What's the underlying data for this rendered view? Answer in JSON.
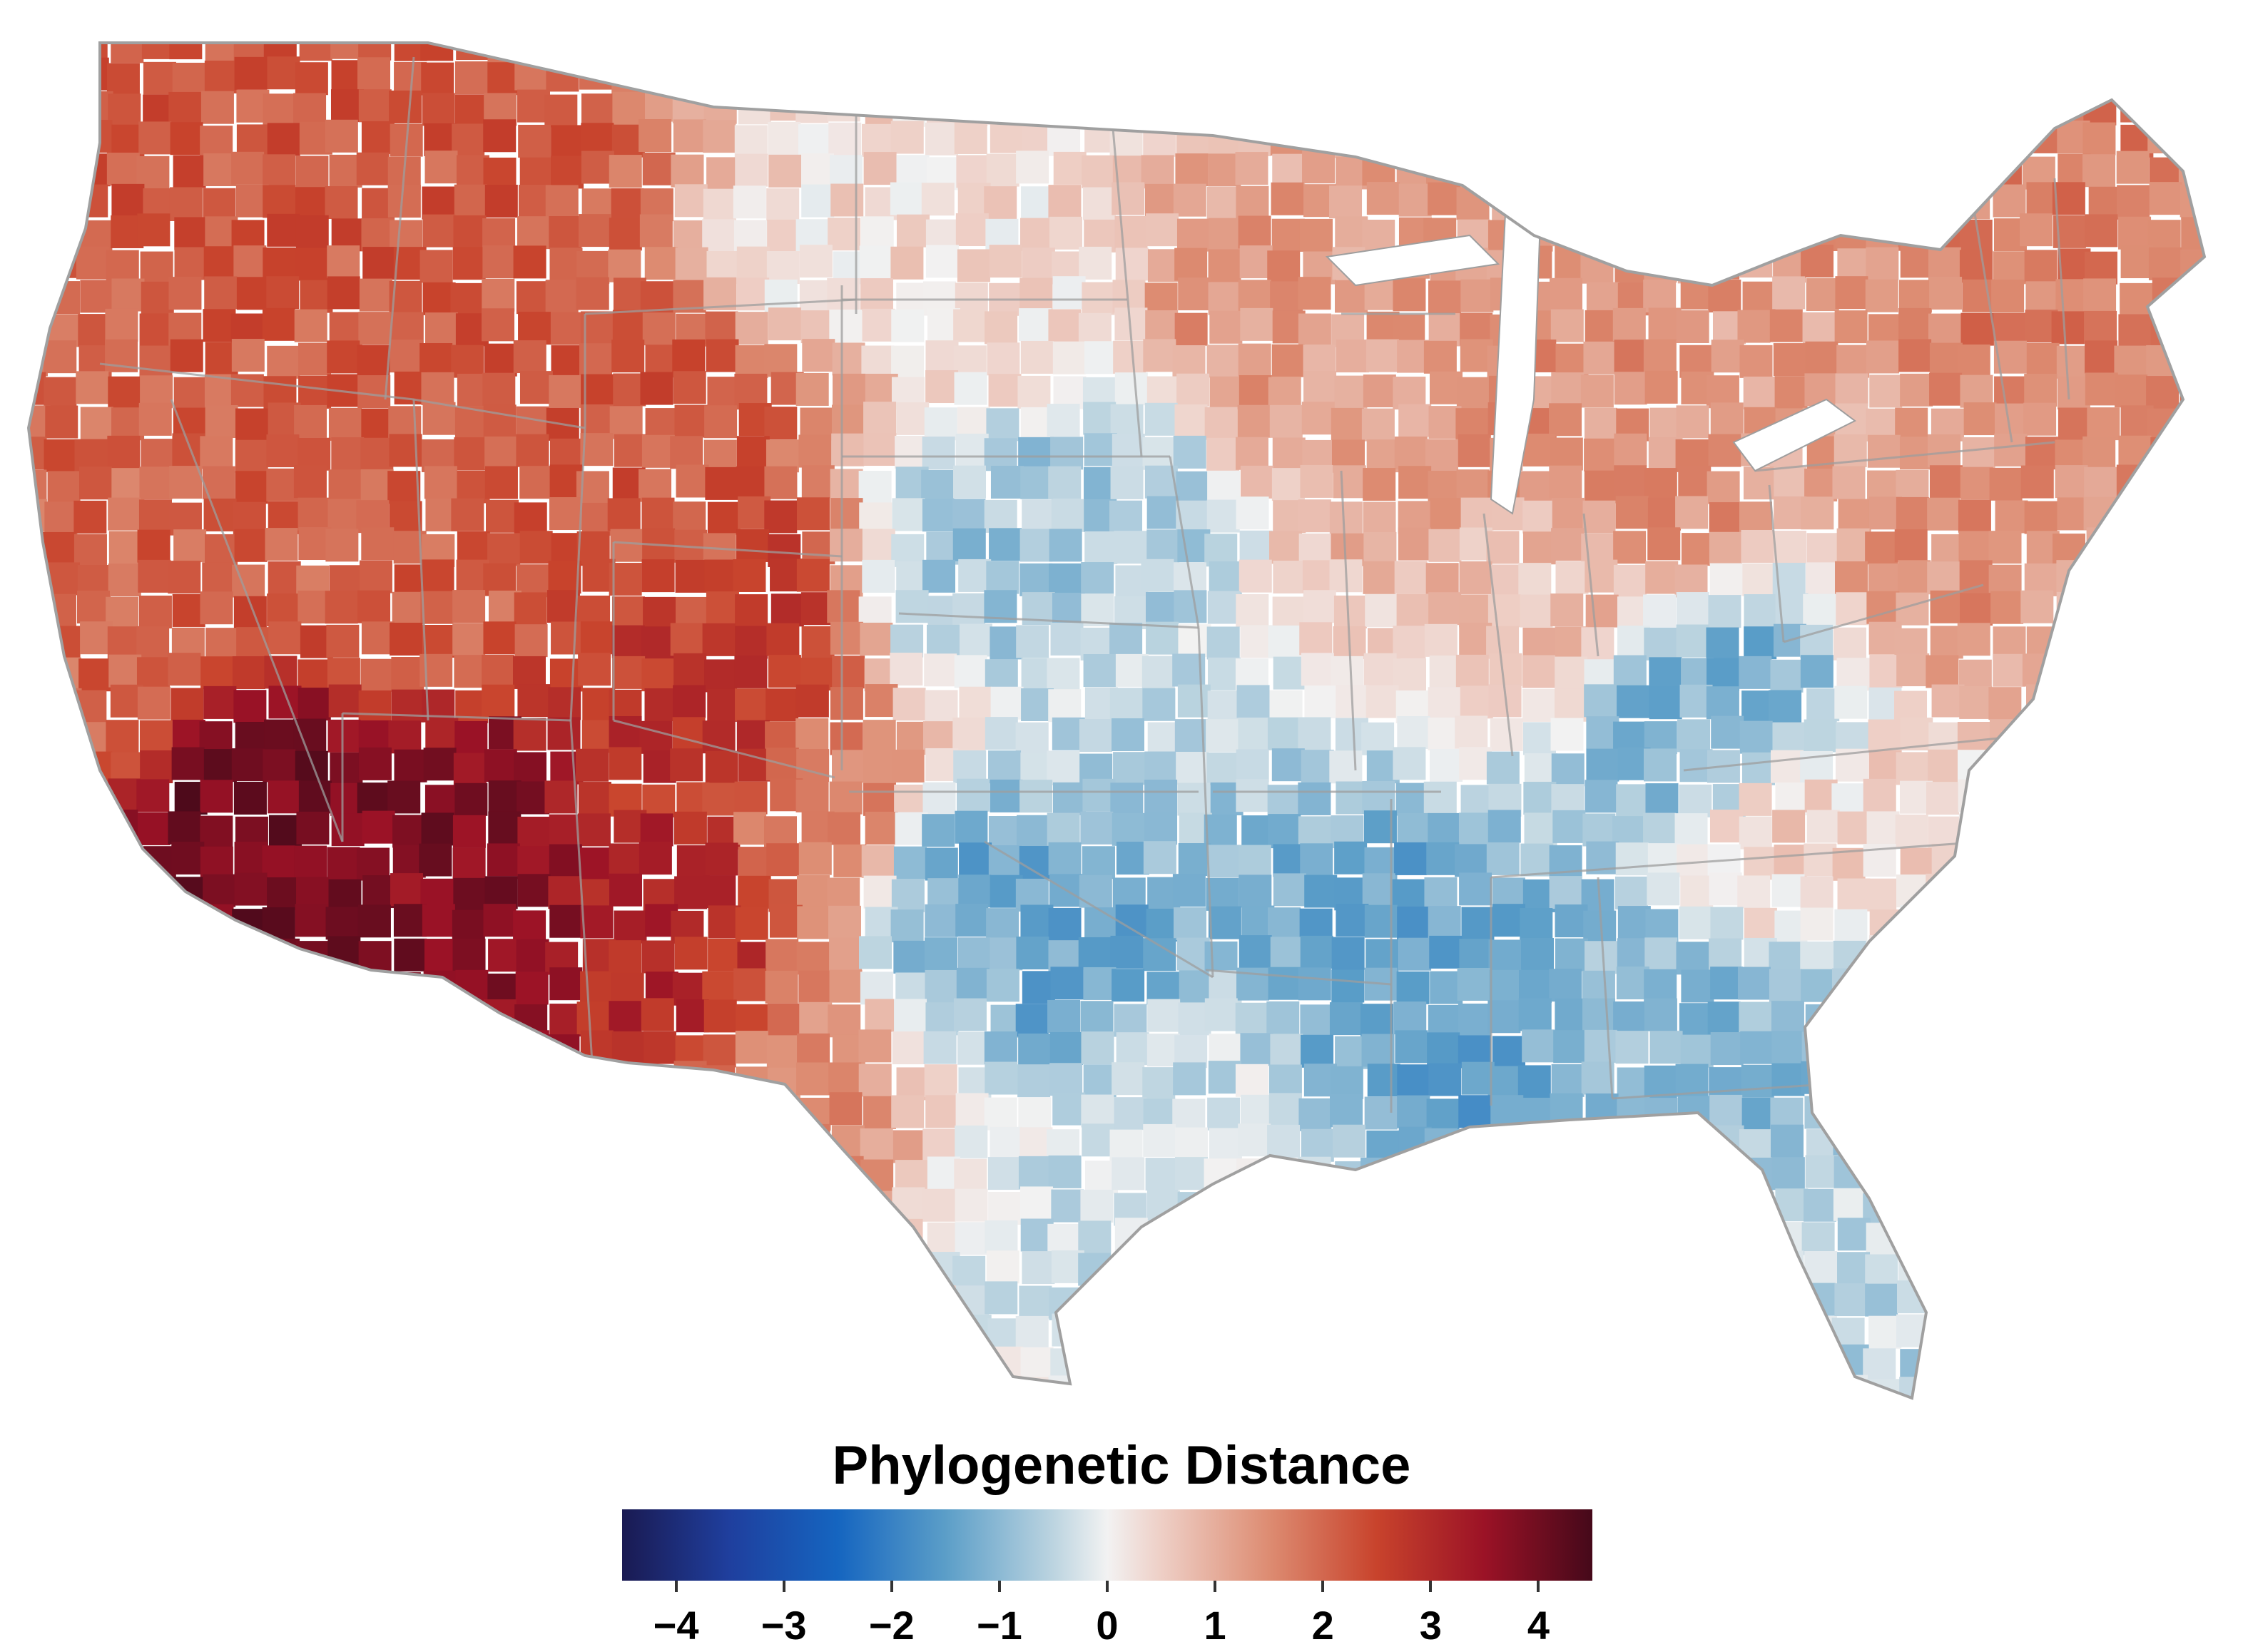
{
  "legend": {
    "title": "Phylogenetic Distance",
    "scale_min": -4.5,
    "scale_max": 4.5,
    "ticks": [
      {
        "value": -4,
        "label": "−4"
      },
      {
        "value": -3,
        "label": "−3"
      },
      {
        "value": -2,
        "label": "−2"
      },
      {
        "value": -1,
        "label": "−1"
      },
      {
        "value": 0,
        "label": "0"
      },
      {
        "value": 1,
        "label": "1"
      },
      {
        "value": 2,
        "label": "2"
      },
      {
        "value": 3,
        "label": "3"
      },
      {
        "value": 4,
        "label": "4"
      }
    ],
    "color_stops": [
      {
        "value": -4.5,
        "color": "#1a1a52"
      },
      {
        "value": -3.5,
        "color": "#1f3f9e"
      },
      {
        "value": -2.5,
        "color": "#1565c0"
      },
      {
        "value": -1.5,
        "color": "#5b9ec8"
      },
      {
        "value": -0.5,
        "color": "#bcd4e0"
      },
      {
        "value": 0,
        "color": "#f2f2f2"
      },
      {
        "value": 0.5,
        "color": "#eecfc6"
      },
      {
        "value": 1.5,
        "color": "#dd8c72"
      },
      {
        "value": 2.5,
        "color": "#c8432c"
      },
      {
        "value": 3.5,
        "color": "#9b1226"
      },
      {
        "value": 4.5,
        "color": "#45091a"
      }
    ]
  },
  "map": {
    "region": "Contiguous United States (counties)",
    "colors": {
      "land_base": "#f4ece9",
      "state_border": "#9e9e9e"
    },
    "regional_values": {
      "pacific_northwest": 2.2,
      "california_coast": 2.0,
      "great_basin": 2.1,
      "southern_california_desert": 4.0,
      "arizona": 3.8,
      "rocky_mountains": 2.2,
      "colorado_front_range": 2.8,
      "new_mexico": 3.0,
      "northern_plains": 0.3,
      "central_plains": -0.8,
      "southern_plains": -1.3,
      "texas": -0.3,
      "west_texas": 1.6,
      "upper_midwest": 1.3,
      "great_lakes": 1.4,
      "ohio_valley": 0.8,
      "appalachia_kentucky": -1.1,
      "lower_mississippi": -1.4,
      "deep_south": -1.0,
      "florida": -0.5,
      "carolinas": 0.4,
      "mid_atlantic": 1.4,
      "new_england": 1.7
    }
  }
}
